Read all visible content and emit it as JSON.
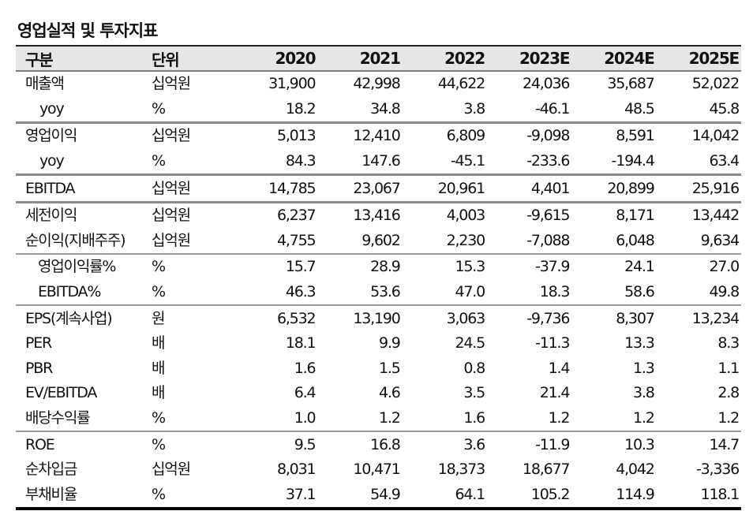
{
  "title": "영업실적 및 투자지표",
  "table": {
    "headers": {
      "label": "구분",
      "unit": "단위",
      "years": [
        "2020",
        "2021",
        "2022",
        "2023E",
        "2024E",
        "2025E"
      ]
    },
    "rows": [
      {
        "label": "매출액",
        "unit": "십억원",
        "values": [
          "31,900",
          "42,998",
          "44,622",
          "24,036",
          "35,687",
          "52,022"
        ]
      },
      {
        "label": "yoy",
        "unit": "%",
        "values": [
          "18.2",
          "34.8",
          "3.8",
          "-46.1",
          "48.5",
          "45.8"
        ]
      },
      {
        "label": "영업이익",
        "unit": "십억원",
        "values": [
          "5,013",
          "12,410",
          "6,809",
          "-9,098",
          "8,591",
          "14,042"
        ]
      },
      {
        "label": "yoy",
        "unit": "%",
        "values": [
          "84.3",
          "147.6",
          "-45.1",
          "-233.6",
          "-194.4",
          "63.4"
        ]
      },
      {
        "label": "EBITDA",
        "unit": "십억원",
        "values": [
          "14,785",
          "23,067",
          "20,961",
          "4,401",
          "20,899",
          "25,916"
        ]
      },
      {
        "label": "세전이익",
        "unit": "십억원",
        "values": [
          "6,237",
          "13,416",
          "4,003",
          "-9,615",
          "8,171",
          "13,442"
        ]
      },
      {
        "label": "순이익(지배주주)",
        "unit": "십억원",
        "values": [
          "4,755",
          "9,602",
          "2,230",
          "-7,088",
          "6,048",
          "9,634"
        ]
      },
      {
        "label": "영업이익률%",
        "unit": "%",
        "values": [
          "15.7",
          "28.9",
          "15.3",
          "-37.9",
          "24.1",
          "27.0"
        ]
      },
      {
        "label": "EBITDA%",
        "unit": "%",
        "values": [
          "46.3",
          "53.6",
          "47.0",
          "18.3",
          "58.6",
          "49.8"
        ]
      },
      {
        "label": "EPS(계속사업)",
        "unit": "원",
        "values": [
          "6,532",
          "13,190",
          "3,063",
          "-9,736",
          "8,307",
          "13,234"
        ]
      },
      {
        "label": "PER",
        "unit": "배",
        "values": [
          "18.1",
          "9.9",
          "24.5",
          "-11.3",
          "13.3",
          "8.3"
        ]
      },
      {
        "label": "PBR",
        "unit": "배",
        "values": [
          "1.6",
          "1.5",
          "0.8",
          "1.4",
          "1.3",
          "1.1"
        ]
      },
      {
        "label": "EV/EBITDA",
        "unit": "배",
        "values": [
          "6.4",
          "4.6",
          "3.5",
          "21.4",
          "3.8",
          "2.8"
        ]
      },
      {
        "label": "배당수익률",
        "unit": "%",
        "values": [
          "1.0",
          "1.2",
          "1.6",
          "1.2",
          "1.2",
          "1.2"
        ]
      },
      {
        "label": "ROE",
        "unit": "%",
        "values": [
          "9.5",
          "16.8",
          "3.6",
          "-11.9",
          "10.3",
          "14.7"
        ]
      },
      {
        "label": "순차입금",
        "unit": "십억원",
        "values": [
          "8,031",
          "10,471",
          "18,373",
          "18,677",
          "4,042",
          "-3,336"
        ]
      },
      {
        "label": "부채비율",
        "unit": "%",
        "values": [
          "37.1",
          "54.9",
          "64.1",
          "105.2",
          "114.9",
          "118.1"
        ]
      }
    ]
  },
  "colors": {
    "header_bg": "#e6e6e6",
    "separator": "#8a8a8a",
    "bottom_rule": "#000000"
  }
}
